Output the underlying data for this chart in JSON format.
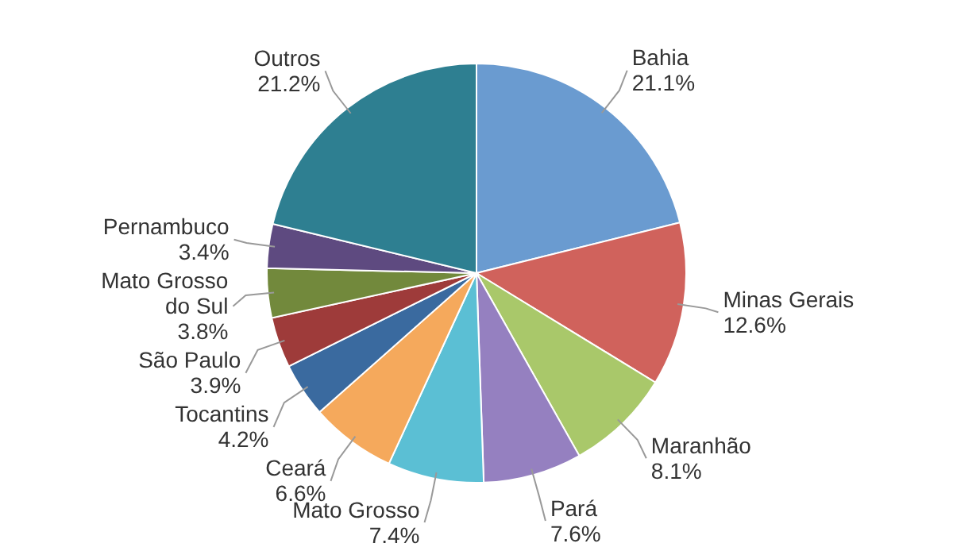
{
  "chart_data": {
    "type": "pie",
    "categories": [
      "Bahia",
      "Minas Gerais",
      "Maranhão",
      "Pará",
      "Mato Grosso",
      "Ceará",
      "Tocantins",
      "São Paulo",
      "Mato Grosso do Sul",
      "Pernambuco",
      "Outros"
    ],
    "values": [
      21.1,
      12.6,
      8.1,
      7.6,
      7.4,
      6.6,
      4.2,
      3.9,
      3.8,
      3.4,
      21.2
    ],
    "value_labels": [
      "21.1%",
      "12.6%",
      "8.1%",
      "7.6%",
      "7.4%",
      "6.6%",
      "4.2%",
      "3.9%",
      "3.8%",
      "3.4%",
      "21.2%"
    ],
    "colors": [
      "#6a9bd0",
      "#d0625c",
      "#a9c86a",
      "#9580c0",
      "#5bbfd4",
      "#f5a95c",
      "#3a6a9f",
      "#9e3b3a",
      "#72893c",
      "#5e4a80",
      "#2e7f91"
    ]
  }
}
